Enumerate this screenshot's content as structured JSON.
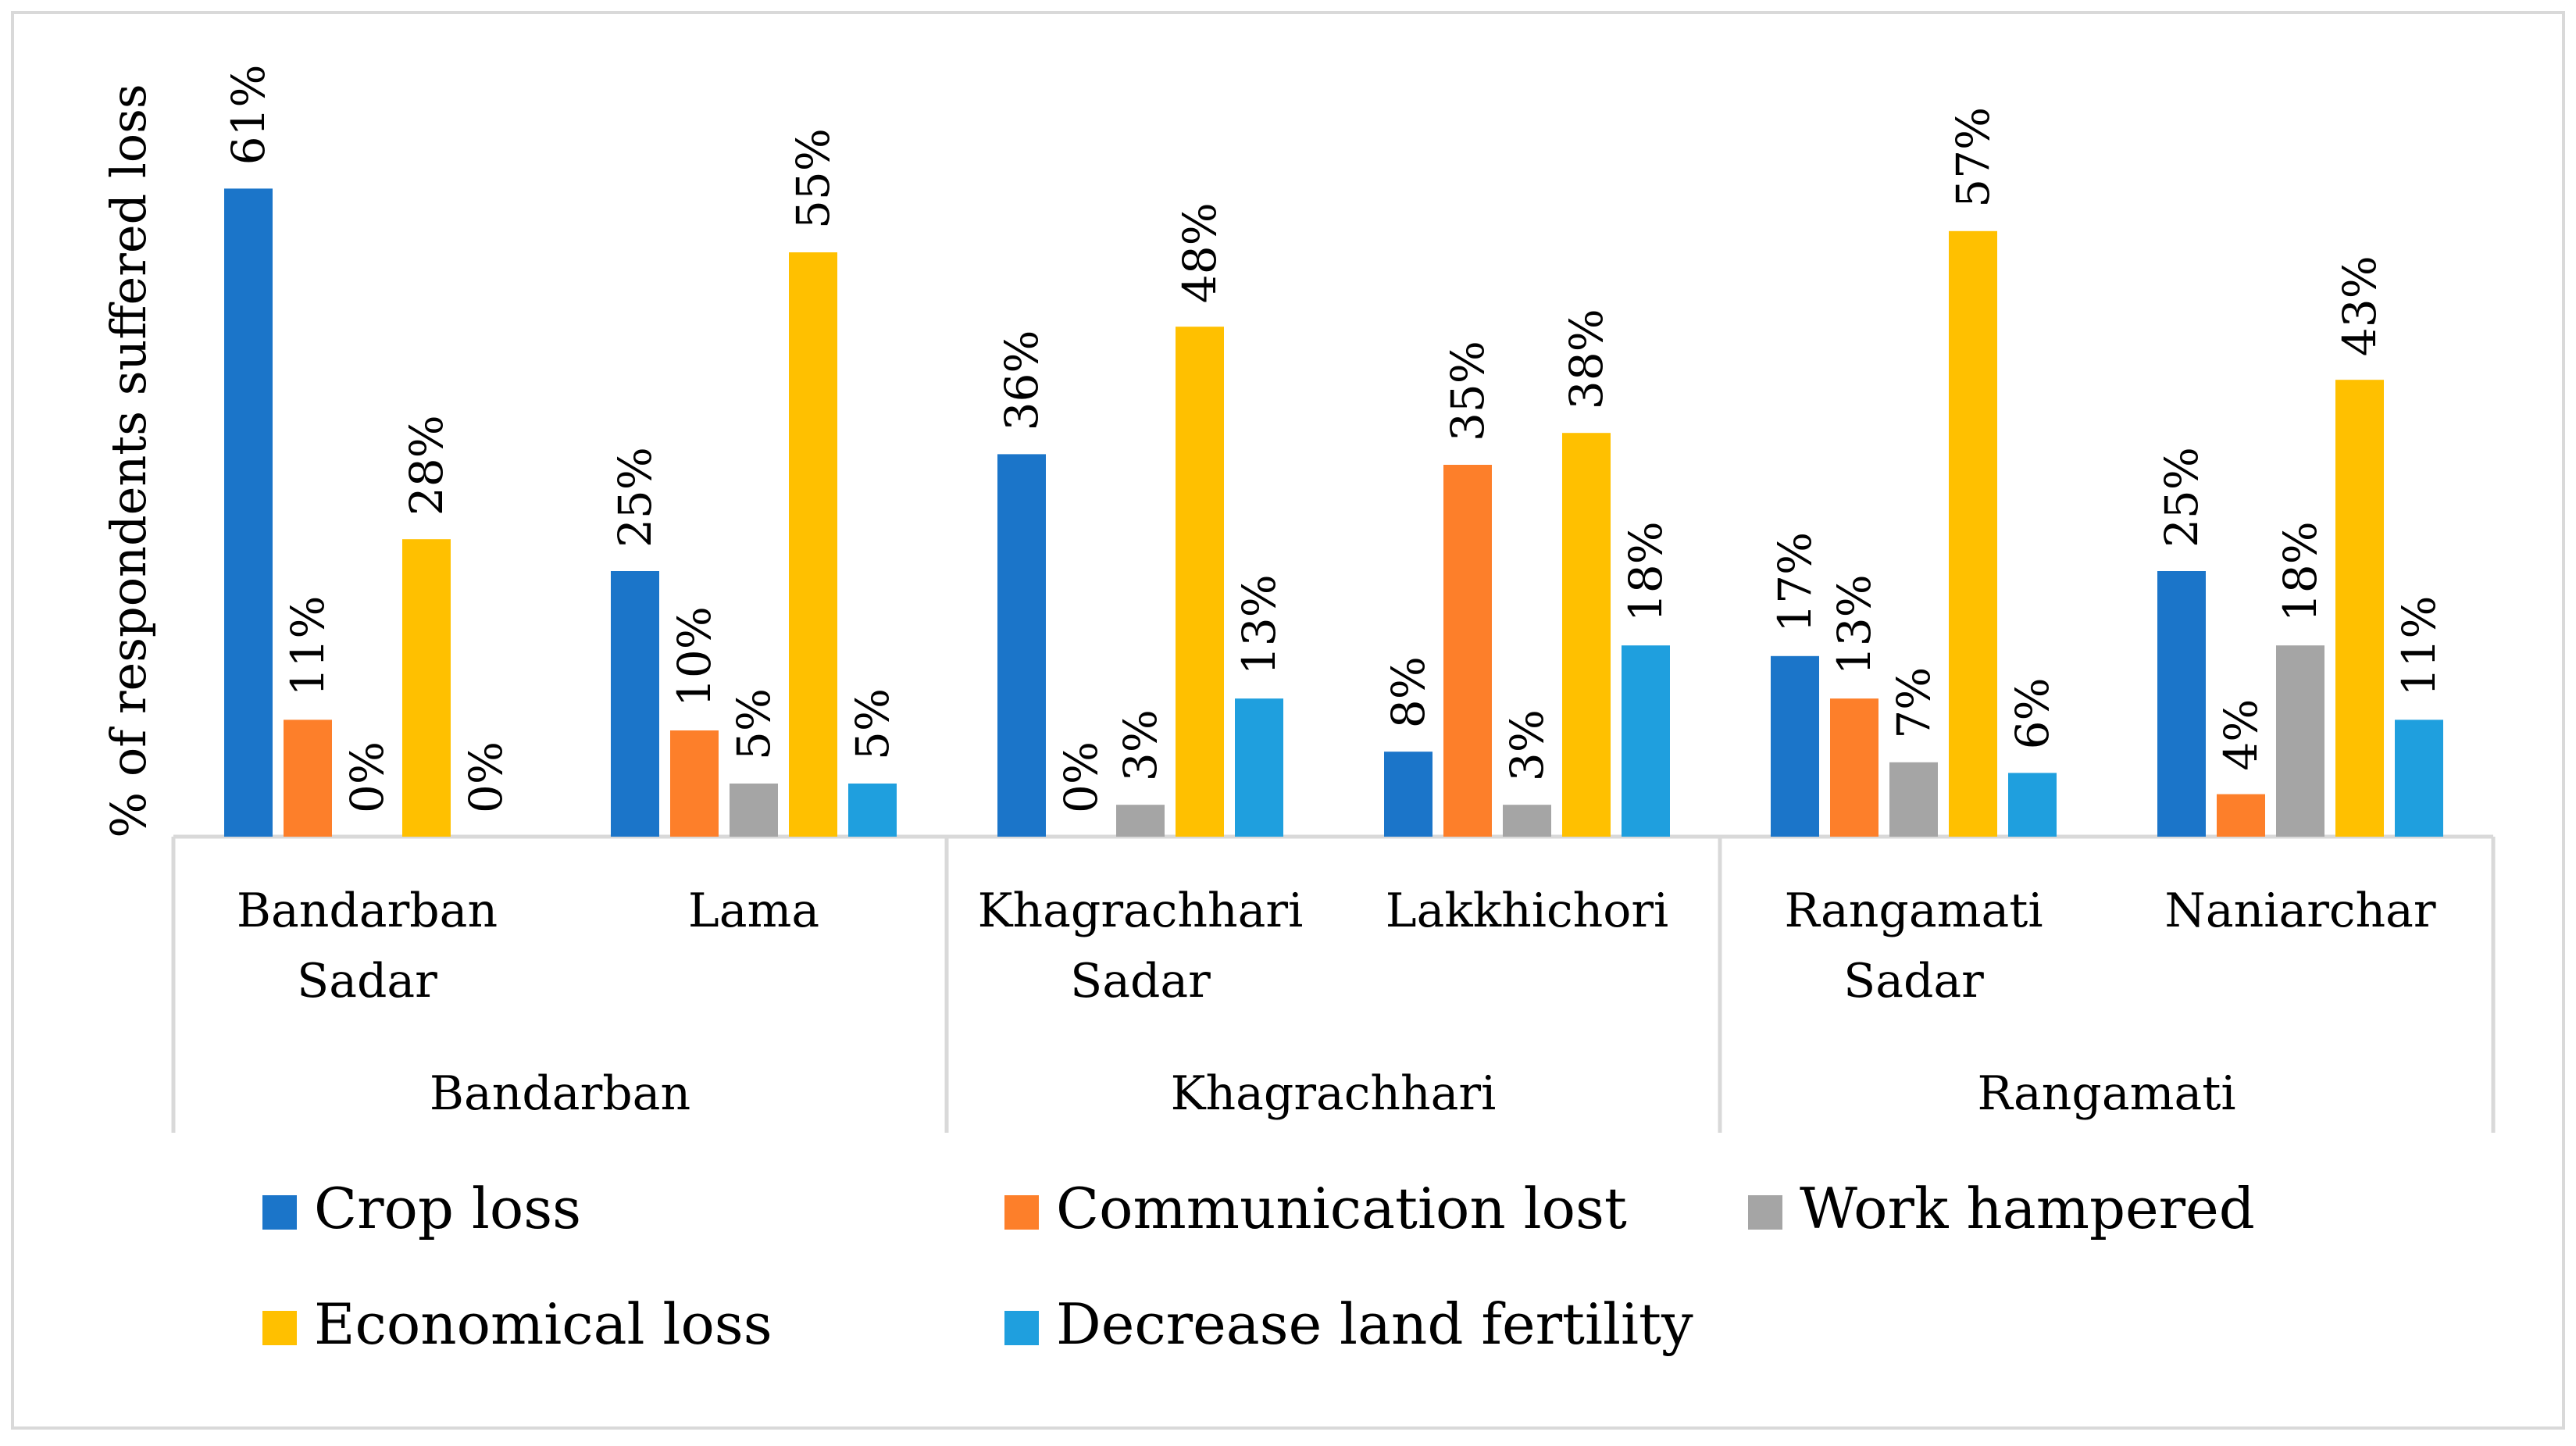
{
  "chart_data": {
    "type": "bar",
    "title": "",
    "xlabel": "",
    "ylabel": "% of respondents suffered loss",
    "ylim": [
      0,
      61
    ],
    "grid": false,
    "legend_position": "bottom",
    "groups": [
      {
        "name": "Bandarban",
        "categories": [
          [
            "Bandarban",
            "Sadar"
          ],
          [
            "Lama"
          ]
        ]
      },
      {
        "name": "Khagrachhari",
        "categories": [
          [
            "Khagrachhari",
            "Sadar"
          ],
          [
            "Lakkhichori"
          ]
        ]
      },
      {
        "name": "Rangamati",
        "categories": [
          [
            "Rangamati",
            "Sadar"
          ],
          [
            "Naniarchar"
          ]
        ]
      }
    ],
    "categories": [
      "Bandarban Sadar",
      "Lama",
      "Khagrachhari Sadar",
      "Lakkhichori",
      "Rangamati Sadar",
      "Naniarchar"
    ],
    "series": [
      {
        "name": "Crop loss",
        "color": "#1b75c9",
        "values": [
          61,
          25,
          36,
          8,
          17,
          25
        ]
      },
      {
        "name": "Communication lost",
        "color": "#fd7f2a",
        "values": [
          11,
          10,
          0,
          35,
          13,
          4
        ]
      },
      {
        "name": "Work hampered",
        "color": "#a5a5a5",
        "values": [
          0,
          5,
          3,
          3,
          7,
          18
        ]
      },
      {
        "name": "Economical loss",
        "color": "#ffc000",
        "values": [
          28,
          55,
          48,
          38,
          57,
          43
        ]
      },
      {
        "name": "Decrease land fertility",
        "color": "#1f9fde",
        "values": [
          0,
          5,
          13,
          18,
          6,
          11
        ]
      }
    ],
    "data_labels": [
      [
        "61%",
        "11%",
        "0%",
        "28%",
        "0%"
      ],
      [
        "25%",
        "10%",
        "5%",
        "55%",
        "5%"
      ],
      [
        "36%",
        "0%",
        "3%",
        "48%",
        "13%"
      ],
      [
        "8%",
        "35%",
        "3%",
        "38%",
        "18%"
      ],
      [
        "17%",
        "13%",
        "7%",
        "57%",
        "6%"
      ],
      [
        "25%",
        "4%",
        "18%",
        "43%",
        "11%"
      ]
    ],
    "legend": [
      "Crop loss",
      "Communication lost",
      "Work hampered",
      "Economical loss",
      "Decrease land fertility"
    ]
  }
}
